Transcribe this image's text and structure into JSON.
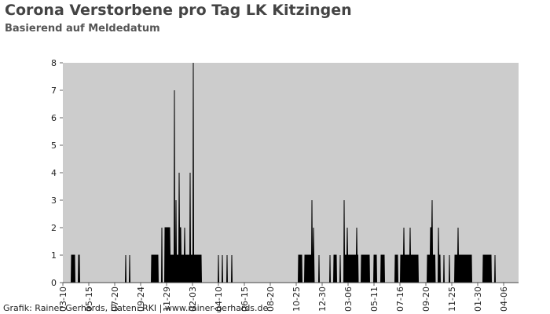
{
  "chart_data": {
    "type": "area",
    "title": "Corona Verstorbene pro Tag LK Kitzingen",
    "subtitle": "Basierend auf Meldedatum",
    "footer": "Grafik: Rainer Gerhards, Daten: RKI | www.rainer-gerhards.de",
    "background": "#cccccc",
    "xlim": [
      0,
      1160
    ],
    "xticks": [
      {
        "value": 0,
        "label": "03-10"
      },
      {
        "value": 66,
        "label": "05-15"
      },
      {
        "value": 132,
        "label": "07-20"
      },
      {
        "value": 198,
        "label": "09-24"
      },
      {
        "value": 264,
        "label": "11-29"
      },
      {
        "value": 330,
        "label": "02-03"
      },
      {
        "value": 396,
        "label": "04-10"
      },
      {
        "value": 462,
        "label": "06-15"
      },
      {
        "value": 528,
        "label": "08-20"
      },
      {
        "value": 594,
        "label": "10-25"
      },
      {
        "value": 660,
        "label": "12-30"
      },
      {
        "value": 726,
        "label": "03-06"
      },
      {
        "value": 792,
        "label": "05-11"
      },
      {
        "value": 858,
        "label": "07-16"
      },
      {
        "value": 924,
        "label": "09-20"
      },
      {
        "value": 990,
        "label": "11-25"
      },
      {
        "value": 1056,
        "label": "01-30"
      },
      {
        "value": 1122,
        "label": "04-06"
      }
    ],
    "ylim": [
      0,
      8
    ],
    "yticks": [
      0,
      1,
      2,
      3,
      4,
      5,
      6,
      7,
      8
    ],
    "series": [
      {
        "color": "#000000",
        "x": [
          0,
          21,
          22,
          30,
          31,
          39,
          40,
          42,
          43,
          159,
          160,
          161,
          169,
          170,
          171,
          225,
          226,
          242,
          243,
          251,
          252,
          253,
          259,
          260,
          272,
          273,
          283,
          284,
          285,
          287,
          288,
          289,
          295,
          296,
          297,
          300,
          301,
          309,
          310,
          311,
          323,
          324,
          325,
          331,
          332,
          333,
          351,
          352,
          353,
          395,
          396,
          397,
          405,
          406,
          407,
          417,
          418,
          419,
          429,
          430,
          431,
          599,
          600,
          608,
          609,
          615,
          616,
          633,
          634,
          635,
          637,
          638,
          639,
          640,
          651,
          652,
          653,
          679,
          680,
          681,
          689,
          690,
          696,
          697,
          705,
          706,
          707,
          715,
          716,
          717,
          723,
          724,
          725,
          739,
          747,
          748,
          749,
          751,
          752,
          759,
          760,
          780,
          781,
          791,
          792,
          798,
          799,
          809,
          810,
          818,
          819,
          845,
          846,
          852,
          853,
          859,
          860,
          867,
          868,
          869,
          883,
          884,
          885,
          904,
          905,
          927,
          928,
          935,
          936,
          939,
          940,
          941,
          947,
          948,
          955,
          956,
          957,
          960,
          961,
          969,
          970,
          971,
          983,
          984,
          985,
          997,
          998,
          1005,
          1006,
          1007,
          1040,
          1041,
          1069,
          1070,
          1090,
          1091,
          1099,
          1100,
          1101,
          1160
        ],
        "values": [
          0,
          0,
          1,
          1,
          0,
          0,
          1,
          1,
          0,
          0,
          1,
          0,
          0,
          1,
          0,
          0,
          1,
          1,
          0,
          0,
          2,
          0,
          0,
          2,
          2,
          1,
          1,
          7,
          1,
          1,
          3,
          1,
          1,
          4,
          2,
          2,
          1,
          1,
          2,
          1,
          1,
          4,
          1,
          1,
          8,
          1,
          1,
          1,
          0,
          0,
          1,
          0,
          0,
          1,
          0,
          0,
          1,
          0,
          0,
          1,
          0,
          0,
          1,
          1,
          0,
          0,
          1,
          1,
          3,
          1,
          1,
          2,
          1,
          0,
          0,
          1,
          0,
          0,
          1,
          0,
          0,
          1,
          1,
          0,
          0,
          1,
          0,
          0,
          3,
          1,
          1,
          2,
          1,
          1,
          1,
          2,
          1,
          1,
          0,
          0,
          1,
          1,
          0,
          0,
          1,
          1,
          0,
          0,
          1,
          1,
          0,
          0,
          1,
          1,
          0,
          0,
          1,
          1,
          2,
          1,
          1,
          2,
          1,
          1,
          0,
          0,
          1,
          1,
          2,
          2,
          3,
          1,
          1,
          0,
          0,
          2,
          1,
          1,
          0,
          0,
          1,
          0,
          0,
          1,
          0,
          0,
          1,
          1,
          2,
          1,
          1,
          0,
          0,
          1,
          1,
          0,
          0,
          1,
          0,
          0
        ]
      }
    ]
  }
}
